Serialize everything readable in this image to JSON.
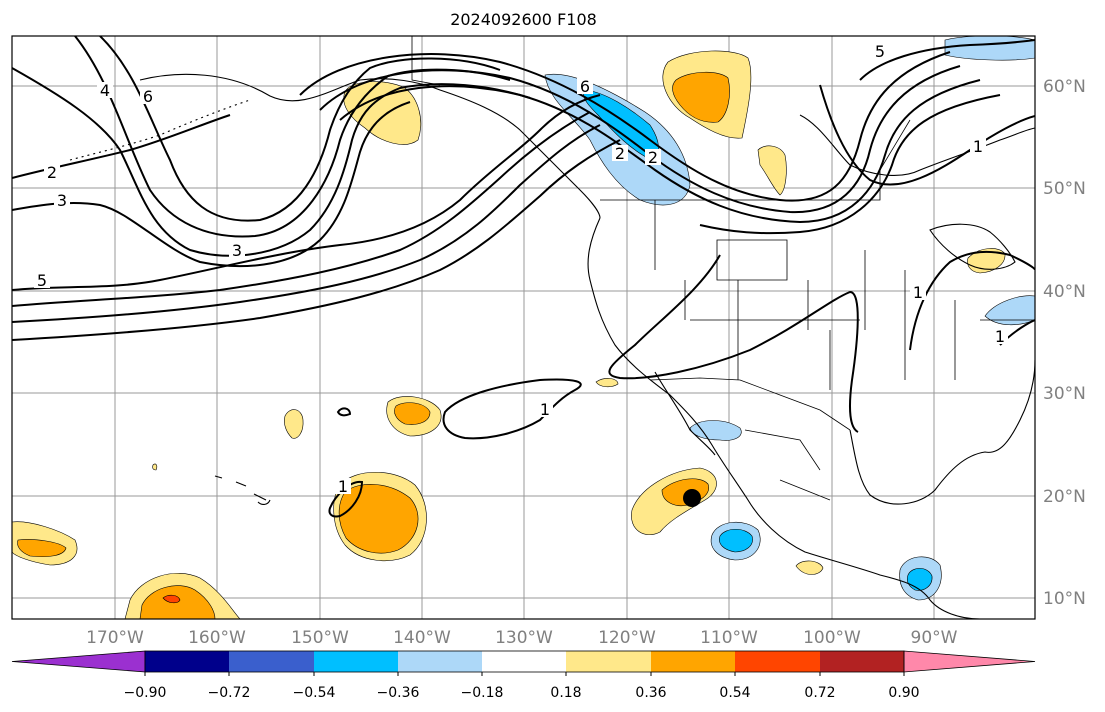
{
  "title": "2024092600 F108",
  "longitude_labels": [
    "170°W",
    "160°W",
    "150°W",
    "140°W",
    "130°W",
    "120°W",
    "110°W",
    "100°W",
    "90°W"
  ],
  "latitude_labels": [
    "60°N",
    "50°N",
    "40°N",
    "30°N",
    "20°N",
    "10°N"
  ],
  "colorbar": {
    "tick_labels": [
      "−0.90",
      "−0.72",
      "−0.54",
      "−0.36",
      "−0.18",
      "0.18",
      "0.36",
      "0.54",
      "0.72",
      "0.90"
    ],
    "colors": [
      "#9b30d0",
      "#00008b",
      "#3a5fcd",
      "#00bfff",
      "#add8f8",
      "#ffffff",
      "#ffe88a",
      "#ffa500",
      "#ff4500",
      "#b22222",
      "#ff88aa"
    ]
  },
  "contour_labels": [
    "2",
    "3",
    "3",
    "5",
    "4",
    "6",
    "6",
    "2",
    "2",
    "5",
    "1",
    "1",
    "1",
    "1",
    "1"
  ],
  "fill_colors": {
    "light_yellow": "#ffe88a",
    "orange": "#ffa500",
    "red": "#ff4500",
    "light_blue": "#add8f8",
    "blue": "#00bfff"
  },
  "marker": "storm-center-dot"
}
